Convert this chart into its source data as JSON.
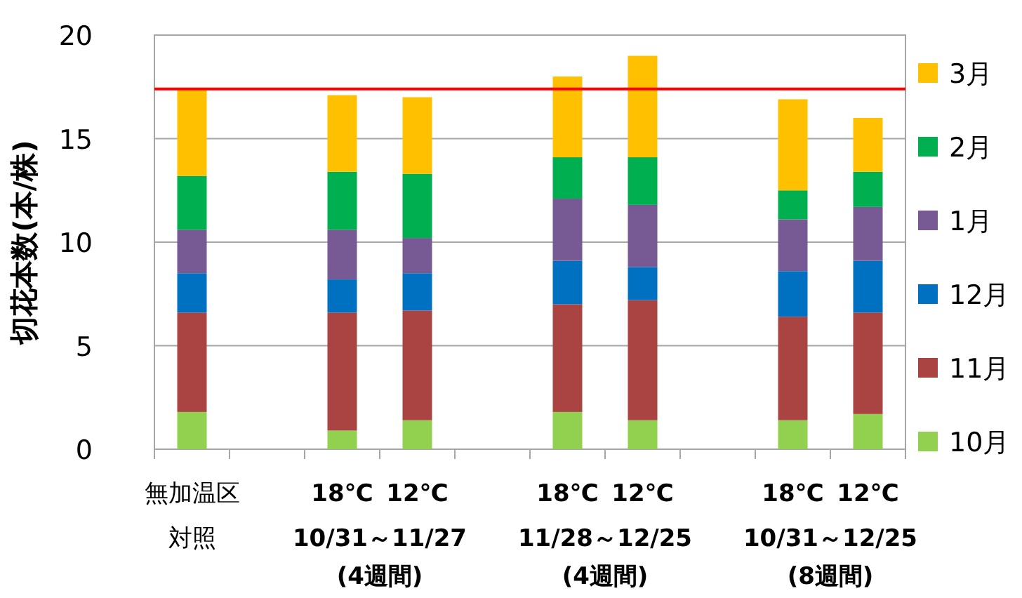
{
  "chart_data": {
    "type": "bar",
    "stacked": true,
    "ylabel": "切花本数(本/株)",
    "categories": [
      "無加温区",
      null,
      "18℃",
      "12℃",
      null,
      "18℃",
      "12℃",
      null,
      "18℃",
      "12℃"
    ],
    "series": [
      {
        "name": "10月",
        "color": "#92d050",
        "values": [
          1.8,
          null,
          0.9,
          1.4,
          null,
          1.8,
          1.4,
          null,
          1.4,
          1.7
        ]
      },
      {
        "name": "11月",
        "color": "#a94442",
        "values": [
          4.8,
          null,
          5.7,
          5.3,
          null,
          5.2,
          5.8,
          null,
          5.0,
          4.9
        ]
      },
      {
        "name": "12月",
        "color": "#0070c0",
        "values": [
          1.9,
          null,
          1.6,
          1.8,
          null,
          2.1,
          1.6,
          null,
          2.2,
          2.5
        ]
      },
      {
        "name": "1月",
        "color": "#775a93",
        "values": [
          2.1,
          null,
          2.4,
          1.7,
          null,
          3.0,
          3.0,
          null,
          2.5,
          2.6
        ]
      },
      {
        "name": "2月",
        "color": "#00b050",
        "values": [
          2.6,
          null,
          2.8,
          3.1,
          null,
          2.0,
          2.3,
          null,
          1.4,
          1.7
        ]
      },
      {
        "name": "3月",
        "color": "#ffc000",
        "values": [
          4.2,
          null,
          3.7,
          3.7,
          null,
          3.9,
          4.9,
          null,
          4.4,
          2.6
        ]
      }
    ],
    "ylim": [
      0,
      20
    ],
    "yticks": [
      0,
      5,
      10,
      15,
      20
    ],
    "grid": "y",
    "legend": "right",
    "ref_lines": [
      {
        "axis": "y",
        "value": 17.4,
        "color": "#ff0000"
      }
    ],
    "annotations": [
      "対照",
      "10/31～11/27\n(4週間)",
      "11/28～12/25\n(4週間)",
      "10/31～12/25\n(8週間)"
    ]
  }
}
